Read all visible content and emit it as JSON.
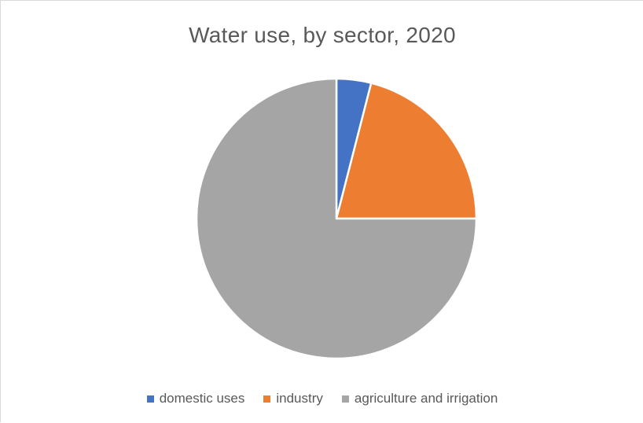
{
  "chart_data": {
    "type": "pie",
    "title": "Water use, by sector, 2020",
    "categories": [
      "domestic uses",
      "industry",
      "agriculture and irrigation"
    ],
    "values": [
      4,
      21,
      75
    ],
    "colors": [
      "#4472c4",
      "#ed7d31",
      "#a5a5a5"
    ],
    "start_angle": "12 o'clock",
    "direction": "clockwise",
    "slice_separator": "white",
    "legend_position": "bottom"
  }
}
